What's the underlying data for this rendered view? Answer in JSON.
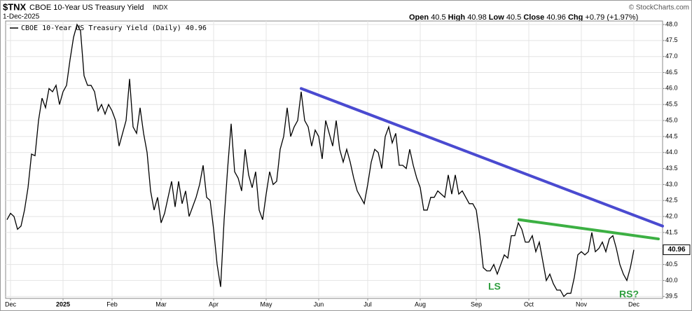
{
  "chart_data": {
    "type": "line",
    "symbol": "$TNX",
    "title": "CBOE 10-Year US Treasury Yield",
    "exchange": "INDX",
    "date": "1-Dec-2025",
    "quote": {
      "open_label": "Open",
      "open": 40.5,
      "high_label": "High",
      "high": 40.98,
      "low_label": "Low",
      "low": 40.5,
      "close_label": "Close",
      "close": 40.96,
      "chg_label": "Chg",
      "chg": "+0.79",
      "chg_pct": "(+1.97%)"
    },
    "source": "© StockCharts.com",
    "series": [
      {
        "name": "CBOE 10-Year US Treasury Yield (Daily) 40.96",
        "color": "#000000",
        "values": [
          41.9,
          42.1,
          42.0,
          41.6,
          41.7,
          42.2,
          42.9,
          43.95,
          43.9,
          45.0,
          45.7,
          45.4,
          46.0,
          45.9,
          46.1,
          45.5,
          45.9,
          46.1,
          46.9,
          47.6,
          48.0,
          47.8,
          46.4,
          46.1,
          46.1,
          45.9,
          45.3,
          45.5,
          45.2,
          45.5,
          45.3,
          45.0,
          44.2,
          44.6,
          45.0,
          46.3,
          44.8,
          44.6,
          45.4,
          44.6,
          44.0,
          42.8,
          42.2,
          42.6,
          41.8,
          42.1,
          42.6,
          43.1,
          42.3,
          43.1,
          42.4,
          42.8,
          42.0,
          42.3,
          42.6,
          43.0,
          43.6,
          42.6,
          42.5,
          41.6,
          40.5,
          39.8,
          41.9,
          43.5,
          44.9,
          43.4,
          43.2,
          42.8,
          44.1,
          43.3,
          42.9,
          43.4,
          42.2,
          41.9,
          42.7,
          43.4,
          43.0,
          43.1,
          44.1,
          44.5,
          45.4,
          44.5,
          44.8,
          45.0,
          45.9,
          45.0,
          44.8,
          44.2,
          44.7,
          44.5,
          43.8,
          45.0,
          44.6,
          44.2,
          45.0,
          44.1,
          43.7,
          44.1,
          43.7,
          43.2,
          42.8,
          42.6,
          42.4,
          43.0,
          43.7,
          44.1,
          44.0,
          43.5,
          44.5,
          44.8,
          44.3,
          44.6,
          43.6,
          43.6,
          43.5,
          44.1,
          43.6,
          43.2,
          42.9,
          42.2,
          42.2,
          42.6,
          42.6,
          42.8,
          42.7,
          42.6,
          43.3,
          42.7,
          43.3,
          42.7,
          42.8,
          42.6,
          42.4,
          42.4,
          42.2,
          41.4,
          40.4,
          40.3,
          40.3,
          40.5,
          40.2,
          40.5,
          40.8,
          40.7,
          41.4,
          41.4,
          41.8,
          41.6,
          41.2,
          41.2,
          41.4,
          40.9,
          41.2,
          40.6,
          40.0,
          40.2,
          39.9,
          39.7,
          39.7,
          39.5,
          39.6,
          39.6,
          40.1,
          40.8,
          40.9,
          40.8,
          40.9,
          41.5,
          40.9,
          41.0,
          41.2,
          40.9,
          41.3,
          41.4,
          41.0,
          40.5,
          40.2,
          40.0,
          40.4,
          40.96
        ]
      }
    ],
    "last_value_label": "40.96",
    "trendlines": [
      {
        "color": "#4a4ad0",
        "x": [
          84,
          187.2
        ],
        "values": [
          46.0,
          41.7
        ]
      },
      {
        "color": "#3cb043",
        "x": [
          146.2,
          186
        ],
        "values": [
          41.9,
          41.3
        ]
      }
    ],
    "annotations": [
      {
        "text": "LS",
        "color": "#2e9e3e"
      },
      {
        "text": "RS?",
        "color": "#2e9e3e"
      }
    ],
    "xlim": [
      -0.4,
      187.2
    ],
    "xticks": [
      {
        "value": 1,
        "label": "Dec"
      },
      {
        "value": 16,
        "label": "2025"
      },
      {
        "value": 30,
        "label": "Feb"
      },
      {
        "value": 44,
        "label": "Mar"
      },
      {
        "value": 59,
        "label": "Apr"
      },
      {
        "value": 74,
        "label": "May"
      },
      {
        "value": 89,
        "label": "Jun"
      },
      {
        "value": 103,
        "label": "Jul"
      },
      {
        "value": 118,
        "label": "Aug"
      },
      {
        "value": 134,
        "label": "Sep"
      },
      {
        "value": 149,
        "label": "Oct"
      },
      {
        "value": 164,
        "label": "Nov"
      },
      {
        "value": 179,
        "label": "Dec"
      }
    ],
    "ylim": [
      39.44,
      48.11
    ],
    "yticks": [
      39.5,
      {
        "value": 40,
        "label": "40.0"
      },
      40.5,
      {
        "value": 41,
        "label": "41.0"
      },
      41.5,
      {
        "value": 42,
        "label": "42.0"
      },
      42.5,
      {
        "value": 43,
        "label": "43.0"
      },
      43.5,
      {
        "value": 44,
        "label": "44.0"
      },
      44.5,
      {
        "value": 45,
        "label": "45.0"
      },
      45.5,
      {
        "value": 46,
        "label": "46.0"
      },
      46.5,
      {
        "value": 47,
        "label": "47.0"
      },
      47.5,
      {
        "value": 48,
        "label": "48.0"
      }
    ],
    "grid": true
  }
}
